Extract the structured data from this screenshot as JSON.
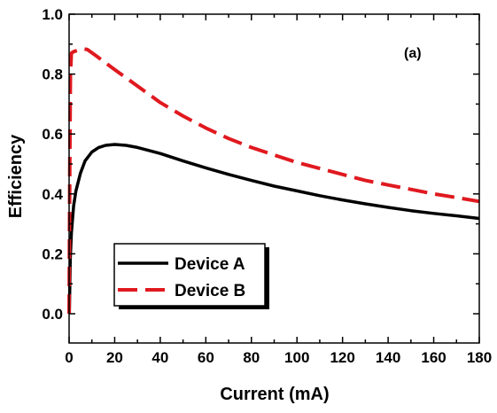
{
  "chart_data": {
    "type": "line",
    "title": "",
    "panel_label": "(a)",
    "xlabel": "Current (mA)",
    "ylabel": "Efficiency",
    "xlim": [
      0,
      180
    ],
    "ylim": [
      0.0,
      1.0
    ],
    "x_ticks": [
      "0",
      "20",
      "40",
      "60",
      "80",
      "100",
      "120",
      "140",
      "160",
      "180"
    ],
    "y_ticks": [
      "0.0",
      "0.2",
      "0.4",
      "0.6",
      "0.8",
      "1.0"
    ],
    "grid": false,
    "legend_position": "bottom-left",
    "series": [
      {
        "name": "Device A",
        "color": "#000000",
        "style": "solid",
        "x": [
          0.1,
          0.5,
          1,
          2,
          3,
          5,
          7,
          10,
          13,
          16,
          20,
          25,
          30,
          40,
          50,
          60,
          70,
          80,
          90,
          100,
          110,
          120,
          130,
          140,
          150,
          160,
          170,
          180
        ],
        "y": [
          0.0,
          0.18,
          0.27,
          0.36,
          0.41,
          0.47,
          0.51,
          0.54,
          0.555,
          0.562,
          0.565,
          0.562,
          0.555,
          0.535,
          0.51,
          0.487,
          0.465,
          0.445,
          0.426,
          0.41,
          0.394,
          0.38,
          0.367,
          0.355,
          0.344,
          0.335,
          0.327,
          0.318
        ]
      },
      {
        "name": "Device B",
        "color": "#e0191f",
        "style": "dashed",
        "x": [
          0.0,
          0.3,
          0.6,
          1,
          2,
          4,
          6,
          8,
          12,
          20,
          30,
          40,
          50,
          60,
          70,
          80,
          90,
          100,
          110,
          120,
          130,
          140,
          150,
          160,
          170,
          180
        ],
        "y": [
          0.0,
          0.5,
          0.8,
          0.87,
          0.875,
          0.88,
          0.885,
          0.882,
          0.86,
          0.815,
          0.76,
          0.705,
          0.66,
          0.62,
          0.585,
          0.555,
          0.53,
          0.505,
          0.485,
          0.465,
          0.445,
          0.43,
          0.415,
          0.4,
          0.388,
          0.375
        ]
      }
    ]
  }
}
